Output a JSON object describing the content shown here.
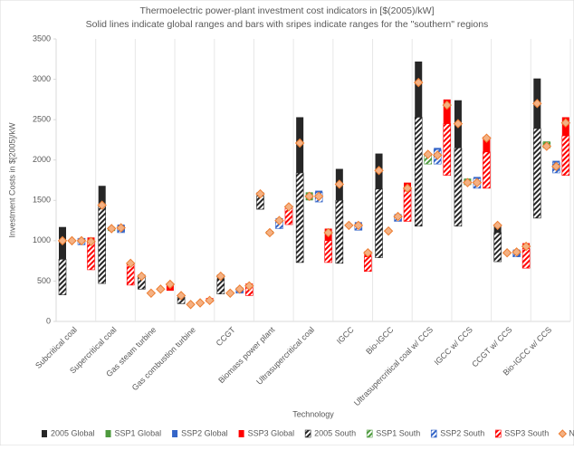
{
  "chart_data": {
    "type": "range-bar",
    "title": "Thermoelectric power-plant investment cost indicators in [$(2005)/kW]",
    "subtitle": "Solid lines indicate global ranges and  bars with sripes indicate ranges for the \"southern\" regions",
    "x_label": "Technology",
    "y_label": "Investment  Costs in $[2005]/kW",
    "ylim": [
      0,
      3500
    ],
    "yticks": [
      0,
      500,
      1000,
      1500,
      2000,
      2500,
      3000,
      3500
    ],
    "categories": [
      "Subcritical coal",
      "Supercritical coal",
      "Gas steam turbine",
      "Gas combustion turbine",
      "CCGT",
      "Biomass power plant",
      "Ultrasupercritical coal",
      "IGCC",
      "Bio-IGCC",
      "Ultrasupercritical coal w/ CCS",
      "IGCC w/ CCS",
      "CCGT w/ CCS",
      "Bio-IGCC w/ CCS"
    ],
    "series": [
      {
        "name": "2005 Global",
        "color": "#262626",
        "pattern": "solid",
        "low": [
          770,
          1420,
          400,
          220,
          340,
          1390,
          730,
          720,
          790,
          1180,
          1180,
          740,
          1280
        ],
        "high": [
          1170,
          1680,
          580,
          320,
          580,
          1600,
          2530,
          1890,
          2080,
          3220,
          2740,
          1200,
          3010
        ]
      },
      {
        "name": "SSP1 Global",
        "color": "#4e9a3e",
        "pattern": "solid",
        "low": [
          null,
          1120,
          null,
          null,
          null,
          1080,
          1500,
          null,
          null,
          1950,
          1690,
          null,
          2150
        ],
        "high": [
          null,
          1170,
          null,
          null,
          null,
          1120,
          1600,
          null,
          null,
          2080,
          1770,
          null,
          2230
        ]
      },
      {
        "name": "SSP2 Global",
        "color": "#3465c8",
        "pattern": "solid",
        "low": [
          960,
          1100,
          null,
          null,
          350,
          1150,
          1480,
          1130,
          1240,
          1950,
          1650,
          800,
          1840
        ],
        "high": [
          1030,
          1200,
          null,
          null,
          420,
          1280,
          1620,
          1230,
          1330,
          2150,
          1790,
          890,
          1990
        ]
      },
      {
        "name": "SSP3 Global",
        "color": "#ff0000",
        "pattern": "solid",
        "low": [
          640,
          450,
          380,
          240,
          320,
          1200,
          730,
          620,
          1240,
          1810,
          1650,
          660,
          1810
        ],
        "high": [
          1040,
          720,
          460,
          290,
          470,
          1430,
          1150,
          870,
          1720,
          2750,
          2290,
          970,
          2530
        ]
      },
      {
        "name": "2005 South",
        "color": "#262626",
        "pattern": "striped",
        "low": [
          330,
          470,
          400,
          220,
          340,
          1390,
          730,
          720,
          790,
          1180,
          1180,
          740,
          1280
        ],
        "high": [
          770,
          1420,
          550,
          300,
          520,
          1550,
          1840,
          1500,
          1640,
          2530,
          2150,
          1100,
          2390
        ]
      },
      {
        "name": "SSP1 South",
        "color": "#4e9a3e",
        "pattern": "striped",
        "low": [
          null,
          null,
          null,
          null,
          null,
          null,
          null,
          null,
          null,
          1950,
          null,
          null,
          2150
        ],
        "high": [
          null,
          null,
          null,
          null,
          null,
          null,
          null,
          null,
          null,
          2060,
          null,
          null,
          2220
        ]
      },
      {
        "name": "SSP2 South",
        "color": "#3465c8",
        "pattern": "striped",
        "low": [
          950,
          1100,
          null,
          null,
          350,
          1150,
          1480,
          1130,
          1240,
          1950,
          1650,
          800,
          1840
        ],
        "high": [
          1030,
          1180,
          null,
          null,
          400,
          1250,
          1600,
          1200,
          1300,
          2130,
          1770,
          870,
          1970
        ]
      },
      {
        "name": "SSP3 South",
        "color": "#ff0000",
        "pattern": "striped",
        "low": [
          640,
          450,
          null,
          null,
          320,
          1200,
          730,
          620,
          1240,
          1810,
          1650,
          660,
          1810
        ],
        "high": [
          1000,
          700,
          null,
          null,
          420,
          1400,
          1000,
          800,
          1650,
          2450,
          2100,
          900,
          2300
        ]
      },
      {
        "name": "NAM",
        "color": "#ed7d31",
        "marker": "diamond",
        "values": [
          [
            1000,
            1000,
            1000,
            990
          ],
          [
            1440,
            1150,
            1160,
            720
          ],
          [
            560,
            350,
            400,
            460
          ],
          [
            320,
            210,
            230,
            260
          ],
          [
            560,
            350,
            400,
            440
          ],
          [
            1580,
            1100,
            1250,
            1420
          ],
          [
            2210,
            1550,
            1550,
            1100
          ],
          [
            1700,
            1190,
            1190,
            850
          ],
          [
            1870,
            1120,
            1300,
            1650
          ],
          [
            2960,
            2070,
            2060,
            2680
          ],
          [
            2450,
            1720,
            1720,
            2270
          ],
          [
            1190,
            850,
            860,
            930
          ],
          [
            2700,
            2170,
            1920,
            2460
          ]
        ]
      }
    ]
  }
}
